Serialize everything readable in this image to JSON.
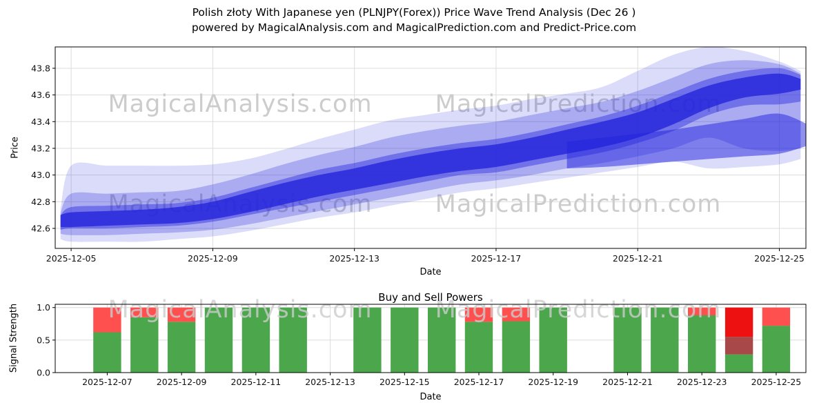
{
  "title": {
    "line1": "Polish złoty With Japanese yen (PLNJPY(Forex)) Price Wave Trend Analysis (Dec 26 )",
    "line2": "powered by MagicalAnalysis.com and MagicalPrediction.com and Predict-Price.com"
  },
  "watermarks": {
    "left": "MagicalAnalysis.com",
    "right": "MagicalPrediction.com"
  },
  "colors": {
    "band": "#2222dd",
    "green": "#4ca64c",
    "red": "#ff5050",
    "red_bright": "#ee1111",
    "darkred": "#a84848",
    "grid": "#dcdcdc",
    "spine": "#000000",
    "tick_text": "#111111",
    "watermark": "#cccccc"
  },
  "chart_data": [
    {
      "type": "area",
      "title": "",
      "xlabel": "Date",
      "ylabel": "Price",
      "xlim": [
        4.55,
        25.75
      ],
      "ylim": [
        42.45,
        43.96
      ],
      "xtick_days": [
        5,
        9,
        13,
        17,
        21,
        25
      ],
      "xtick_labels": [
        "2025-12-05",
        "2025-12-09",
        "2025-12-13",
        "2025-12-17",
        "2025-12-21",
        "2025-12-25"
      ],
      "ytick_values": [
        42.6,
        42.8,
        43.0,
        43.2,
        43.4,
        43.6,
        43.8
      ],
      "ytick_labels": [
        "42.6",
        "42.8",
        "43.0",
        "43.2",
        "43.4",
        "43.6",
        "43.8"
      ],
      "grid": true,
      "bands": [
        {
          "name": "outer-band",
          "opacity": 0.16,
          "x": [
            4.7,
            5,
            6,
            7,
            8,
            9,
            10,
            11,
            12,
            13,
            14,
            15,
            16,
            17,
            18,
            19,
            20,
            21,
            22,
            23,
            24,
            25,
            25.6
          ],
          "low": [
            42.52,
            42.5,
            42.5,
            42.5,
            42.52,
            42.54,
            42.58,
            42.63,
            42.68,
            42.72,
            42.77,
            42.82,
            42.87,
            42.9,
            42.94,
            42.98,
            43.02,
            43.06,
            43.1,
            43.05,
            43.06,
            43.08,
            43.12
          ],
          "high": [
            42.75,
            43.07,
            43.07,
            43.07,
            43.07,
            43.08,
            43.12,
            43.19,
            43.27,
            43.34,
            43.41,
            43.45,
            43.49,
            43.52,
            43.57,
            43.61,
            43.66,
            43.78,
            43.9,
            43.96,
            43.93,
            43.85,
            43.78
          ]
        },
        {
          "name": "mid-band",
          "opacity": 0.26,
          "x": [
            4.7,
            5,
            6,
            7,
            8,
            9,
            10,
            11,
            12,
            13,
            14,
            15,
            16,
            17,
            18,
            19,
            20,
            21,
            22,
            23,
            24,
            25,
            25.6
          ],
          "low": [
            42.56,
            42.55,
            42.55,
            42.56,
            42.57,
            42.59,
            42.63,
            42.68,
            42.73,
            42.78,
            42.83,
            42.88,
            42.93,
            42.96,
            43.0,
            43.05,
            43.09,
            43.14,
            43.2,
            43.28,
            43.2,
            43.18,
            43.2
          ],
          "high": [
            42.72,
            42.86,
            42.86,
            42.87,
            42.88,
            42.93,
            43.0,
            43.08,
            43.15,
            43.21,
            43.28,
            43.33,
            43.37,
            43.4,
            43.45,
            43.5,
            43.55,
            43.63,
            43.73,
            43.83,
            43.86,
            43.83,
            43.76
          ]
        },
        {
          "name": "inner-band",
          "opacity": 0.42,
          "x": [
            4.7,
            5,
            6,
            7,
            8,
            9,
            10,
            11,
            12,
            13,
            14,
            15,
            16,
            17,
            18,
            19,
            20,
            21,
            22,
            23,
            24,
            25,
            25.6
          ],
          "low": [
            42.59,
            42.6,
            42.6,
            42.61,
            42.62,
            42.65,
            42.7,
            42.75,
            42.8,
            42.85,
            42.9,
            42.95,
            43.0,
            43.02,
            43.07,
            43.12,
            43.17,
            43.24,
            43.33,
            43.45,
            43.52,
            43.53,
            43.55
          ],
          "high": [
            42.7,
            42.76,
            42.77,
            42.78,
            42.79,
            42.83,
            42.9,
            42.97,
            43.04,
            43.09,
            43.15,
            43.2,
            43.24,
            43.27,
            43.32,
            43.38,
            43.44,
            43.52,
            43.62,
            43.72,
            43.78,
            43.8,
            43.75
          ]
        },
        {
          "name": "lower-tongue-band",
          "opacity": 0.5,
          "x": [
            19,
            20,
            21,
            22,
            23,
            24,
            25,
            25.8
          ],
          "low": [
            43.05,
            43.06,
            43.08,
            43.1,
            43.12,
            43.14,
            43.16,
            43.22
          ],
          "high": [
            43.25,
            43.28,
            43.31,
            43.34,
            43.38,
            43.42,
            43.46,
            43.38
          ]
        },
        {
          "name": "core-band",
          "opacity": 0.78,
          "x": [
            4.7,
            5,
            6,
            7,
            8,
            9,
            10,
            11,
            12,
            13,
            14,
            15,
            16,
            17,
            18,
            19,
            20,
            21,
            22,
            23,
            24,
            25,
            25.6
          ],
          "low": [
            42.61,
            42.61,
            42.62,
            42.63,
            42.64,
            42.67,
            42.72,
            42.78,
            42.84,
            42.89,
            42.94,
            42.99,
            43.03,
            43.06,
            43.11,
            43.16,
            43.21,
            43.28,
            43.38,
            43.5,
            43.58,
            43.61,
            43.64
          ],
          "high": [
            42.7,
            42.72,
            42.73,
            42.74,
            42.76,
            42.8,
            42.87,
            42.94,
            43.0,
            43.05,
            43.11,
            43.16,
            43.2,
            43.23,
            43.28,
            43.34,
            43.4,
            43.47,
            43.57,
            43.67,
            43.73,
            43.76,
            43.72
          ]
        }
      ]
    },
    {
      "type": "bar",
      "title": "Buy and Sell Powers",
      "xlabel": "Date",
      "ylabel": "Signal Strength",
      "xlim": [
        5.6,
        25.8
      ],
      "ylim": [
        0,
        1.05
      ],
      "bar_width": 0.75,
      "xtick_days": [
        7,
        9,
        11,
        13,
        15,
        17,
        19,
        21,
        23,
        25
      ],
      "xtick_labels": [
        "2025-12-07",
        "2025-12-09",
        "2025-12-11",
        "2025-12-13",
        "2025-12-15",
        "2025-12-17",
        "2025-12-19",
        "2025-12-21",
        "2025-12-23",
        "2025-12-25"
      ],
      "ytick_values": [
        0.0,
        0.5,
        1.0
      ],
      "ytick_labels": [
        "0.0",
        "0.5",
        "1.0"
      ],
      "grid": true,
      "bars": [
        {
          "date": "2025-12-07",
          "day": 7,
          "green": 0.62,
          "darkred": 0,
          "red": 0.38,
          "red_bright": 0
        },
        {
          "date": "2025-12-08",
          "day": 8,
          "green": 0.85,
          "darkred": 0,
          "red": 0.15,
          "red_bright": 0
        },
        {
          "date": "2025-12-09",
          "day": 9,
          "green": 0.78,
          "darkred": 0,
          "red": 0.22,
          "red_bright": 0
        },
        {
          "date": "2025-12-10",
          "day": 10,
          "green": 1.0,
          "darkred": 0,
          "red": 0,
          "red_bright": 0
        },
        {
          "date": "2025-12-11",
          "day": 11,
          "green": 1.0,
          "darkred": 0,
          "red": 0,
          "red_bright": 0
        },
        {
          "date": "2025-12-12",
          "day": 12,
          "green": 1.0,
          "darkred": 0,
          "red": 0,
          "red_bright": 0
        },
        {
          "date": "2025-12-14",
          "day": 14,
          "green": 1.0,
          "darkred": 0,
          "red": 0,
          "red_bright": 0
        },
        {
          "date": "2025-12-15",
          "day": 15,
          "green": 1.0,
          "darkred": 0,
          "red": 0,
          "red_bright": 0
        },
        {
          "date": "2025-12-16",
          "day": 16,
          "green": 1.0,
          "darkred": 0,
          "red": 0,
          "red_bright": 0
        },
        {
          "date": "2025-12-17",
          "day": 17,
          "green": 0.78,
          "darkred": 0,
          "red": 0.22,
          "red_bright": 0
        },
        {
          "date": "2025-12-18",
          "day": 18,
          "green": 0.79,
          "darkred": 0,
          "red": 0.21,
          "red_bright": 0
        },
        {
          "date": "2025-12-19",
          "day": 19,
          "green": 1.0,
          "darkred": 0,
          "red": 0,
          "red_bright": 0
        },
        {
          "date": "2025-12-21",
          "day": 21,
          "green": 1.0,
          "darkred": 0,
          "red": 0,
          "red_bright": 0
        },
        {
          "date": "2025-12-22",
          "day": 22,
          "green": 1.0,
          "darkred": 0,
          "red": 0,
          "red_bright": 0
        },
        {
          "date": "2025-12-23",
          "day": 23,
          "green": 0.88,
          "darkred": 0,
          "red": 0.12,
          "red_bright": 0
        },
        {
          "date": "2025-12-24",
          "day": 24,
          "green": 0.28,
          "darkred": 0.27,
          "red": 0,
          "red_bright": 0.45
        },
        {
          "date": "2025-12-25",
          "day": 25,
          "green": 0.72,
          "darkred": 0,
          "red": 0.28,
          "red_bright": 0
        }
      ]
    }
  ]
}
